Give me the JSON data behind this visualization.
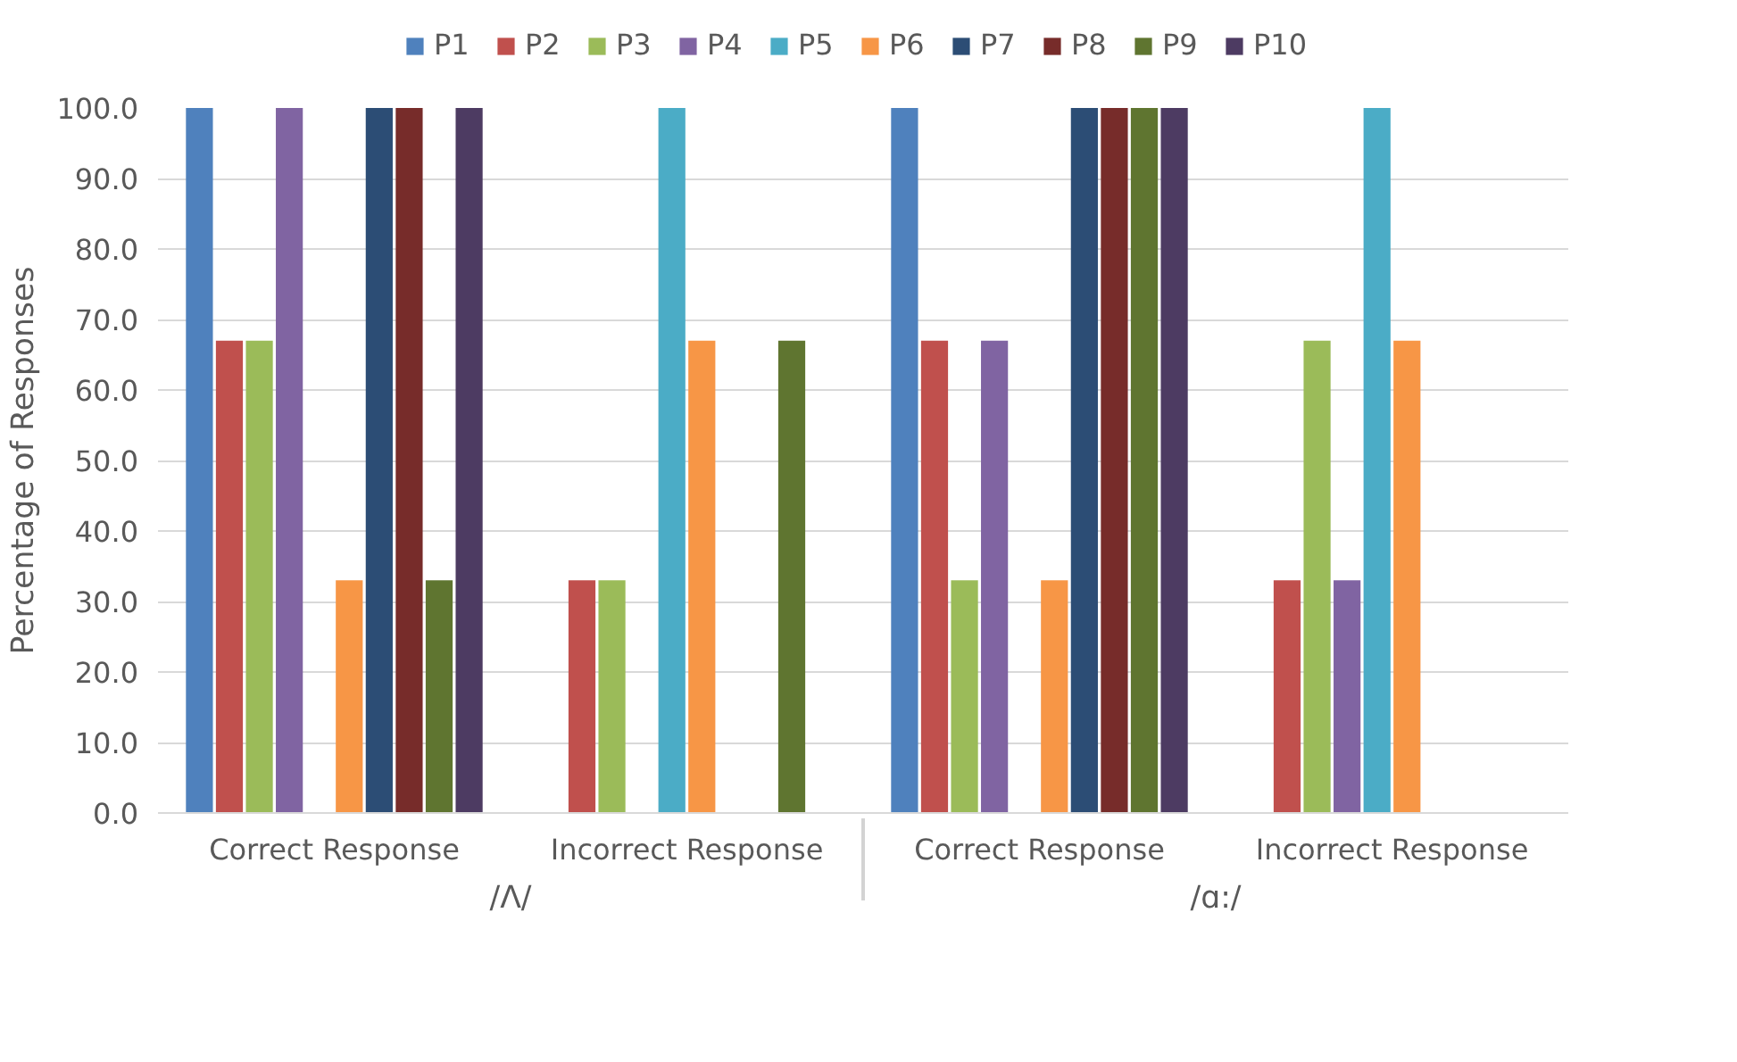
{
  "chart_data": {
    "type": "bar",
    "categories": [
      "Correct Response",
      "Incorrect Response",
      "Correct Response",
      "Incorrect Response"
    ],
    "annotations": [
      "/Λ/",
      "/ɑ:/"
    ],
    "ylabel": "Percentage of Responses",
    "ylim": [
      0,
      100
    ],
    "yticks": [
      {
        "value": 0,
        "label": "0.0"
      },
      {
        "value": 10,
        "label": "10.0"
      },
      {
        "value": 20,
        "label": "20.0"
      },
      {
        "value": 30,
        "label": "30.0"
      },
      {
        "value": 40,
        "label": "40.0"
      },
      {
        "value": 50,
        "label": "50.0"
      },
      {
        "value": 60,
        "label": "60.0"
      },
      {
        "value": 70,
        "label": "70.0"
      },
      {
        "value": 80,
        "label": "80.0"
      },
      {
        "value": 90,
        "label": "90.0"
      },
      {
        "value": 100,
        "label": "100.0"
      }
    ],
    "grid": "y",
    "legend": "top",
    "series": [
      {
        "name": "P1",
        "color": "#4f81bd",
        "values": [
          100,
          0,
          100,
          0
        ]
      },
      {
        "name": "P2",
        "color": "#c0504d",
        "values": [
          67,
          33,
          67,
          33
        ]
      },
      {
        "name": "P3",
        "color": "#9bbb59",
        "values": [
          67,
          33,
          33,
          67
        ]
      },
      {
        "name": "P4",
        "color": "#8064a2",
        "values": [
          100,
          0,
          67,
          33
        ]
      },
      {
        "name": "P5",
        "color": "#4bacc6",
        "values": [
          0,
          100,
          0,
          100
        ]
      },
      {
        "name": "P6",
        "color": "#f79646",
        "values": [
          33,
          67,
          33,
          67
        ]
      },
      {
        "name": "P7",
        "color": "#2c4d75",
        "values": [
          100,
          0,
          100,
          0
        ]
      },
      {
        "name": "P8",
        "color": "#772c2a",
        "values": [
          100,
          0,
          100,
          0
        ]
      },
      {
        "name": "P9",
        "color": "#5f7530",
        "values": [
          33,
          67,
          100,
          0
        ]
      },
      {
        "name": "P10",
        "color": "#4d3b62",
        "values": [
          100,
          0,
          100,
          0
        ]
      }
    ]
  }
}
